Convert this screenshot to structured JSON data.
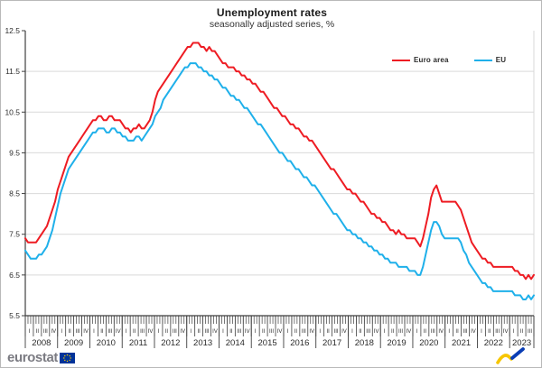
{
  "title": "Unemployment rates",
  "subtitle": "seasonally adjusted series, %",
  "footer": {
    "brand": "eurostat"
  },
  "colors": {
    "euro_area_line": "#ee1c23",
    "eu_line": "#1fb0ea",
    "grid": "#d9d9d9",
    "axis": "#3f3f3f",
    "label_text": "#2b2b2b",
    "eu_flag_blue": "#003399",
    "eu_flag_yellow": "#ffcc00",
    "icon_yellow": "#f7c600",
    "icon_blue": "#0a3db4"
  },
  "chart_data": {
    "type": "line",
    "title": "Unemployment rates",
    "subtitle": "seasonally adjusted series, %",
    "x_unit": "month",
    "x_start": "2008-01",
    "x_end": "2023-09",
    "n_months": 189,
    "years": [
      "2008",
      "2009",
      "2010",
      "2011",
      "2012",
      "2013",
      "2014",
      "2015",
      "2016",
      "2017",
      "2018",
      "2019",
      "2020",
      "2021",
      "2022",
      "2023"
    ],
    "quarter_labels": [
      "I",
      "II",
      "III",
      "IV"
    ],
    "ylim": [
      5.5,
      12.5
    ],
    "yticks": [
      5.5,
      6.5,
      7.5,
      8.5,
      9.5,
      10.5,
      11.5,
      12.5
    ],
    "grid": true,
    "legend_position": "top-right",
    "series": [
      {
        "name": "Euro area",
        "color": "#ee1c23",
        "values": [
          7.4,
          7.3,
          7.3,
          7.3,
          7.3,
          7.4,
          7.5,
          7.6,
          7.7,
          7.9,
          8.1,
          8.3,
          8.6,
          8.8,
          9.0,
          9.2,
          9.4,
          9.5,
          9.6,
          9.7,
          9.8,
          9.9,
          10.0,
          10.1,
          10.2,
          10.3,
          10.3,
          10.4,
          10.4,
          10.3,
          10.3,
          10.4,
          10.4,
          10.3,
          10.3,
          10.3,
          10.2,
          10.1,
          10.1,
          10.0,
          10.1,
          10.1,
          10.2,
          10.1,
          10.1,
          10.2,
          10.3,
          10.5,
          10.8,
          11.0,
          11.1,
          11.2,
          11.3,
          11.4,
          11.5,
          11.6,
          11.7,
          11.8,
          11.9,
          12.0,
          12.1,
          12.1,
          12.2,
          12.2,
          12.2,
          12.1,
          12.1,
          12.0,
          12.1,
          12.0,
          12.0,
          11.9,
          11.8,
          11.7,
          11.7,
          11.6,
          11.6,
          11.6,
          11.5,
          11.5,
          11.4,
          11.4,
          11.3,
          11.3,
          11.2,
          11.2,
          11.1,
          11.0,
          11.0,
          10.9,
          10.8,
          10.7,
          10.6,
          10.6,
          10.5,
          10.4,
          10.4,
          10.3,
          10.2,
          10.2,
          10.1,
          10.1,
          10.0,
          9.9,
          9.9,
          9.8,
          9.8,
          9.7,
          9.6,
          9.5,
          9.4,
          9.3,
          9.2,
          9.1,
          9.1,
          9.0,
          8.9,
          8.8,
          8.7,
          8.6,
          8.6,
          8.5,
          8.5,
          8.4,
          8.3,
          8.3,
          8.2,
          8.1,
          8.0,
          8.0,
          7.9,
          7.9,
          7.8,
          7.8,
          7.7,
          7.6,
          7.6,
          7.5,
          7.6,
          7.5,
          7.5,
          7.4,
          7.4,
          7.4,
          7.4,
          7.3,
          7.2,
          7.4,
          7.7,
          8.0,
          8.4,
          8.6,
          8.7,
          8.5,
          8.3,
          8.3,
          8.3,
          8.3,
          8.3,
          8.3,
          8.2,
          8.1,
          7.9,
          7.7,
          7.5,
          7.3,
          7.2,
          7.1,
          7.0,
          6.9,
          6.9,
          6.8,
          6.8,
          6.7,
          6.7,
          6.7,
          6.7,
          6.7,
          6.7,
          6.7,
          6.7,
          6.6,
          6.6,
          6.5,
          6.5,
          6.4,
          6.5,
          6.4,
          6.5
        ]
      },
      {
        "name": "EU",
        "color": "#1fb0ea",
        "values": [
          7.1,
          7.0,
          6.9,
          6.9,
          6.9,
          7.0,
          7.0,
          7.1,
          7.2,
          7.4,
          7.6,
          7.9,
          8.2,
          8.5,
          8.7,
          8.9,
          9.1,
          9.2,
          9.3,
          9.4,
          9.5,
          9.6,
          9.7,
          9.8,
          9.9,
          10.0,
          10.0,
          10.1,
          10.1,
          10.1,
          10.0,
          10.0,
          10.1,
          10.1,
          10.0,
          10.0,
          9.9,
          9.9,
          9.8,
          9.8,
          9.8,
          9.9,
          9.9,
          9.8,
          9.9,
          10.0,
          10.1,
          10.2,
          10.4,
          10.5,
          10.6,
          10.8,
          10.9,
          11.0,
          11.1,
          11.2,
          11.3,
          11.4,
          11.5,
          11.6,
          11.6,
          11.7,
          11.7,
          11.7,
          11.6,
          11.6,
          11.5,
          11.5,
          11.4,
          11.4,
          11.3,
          11.3,
          11.2,
          11.1,
          11.1,
          11.0,
          10.9,
          10.9,
          10.8,
          10.8,
          10.7,
          10.6,
          10.6,
          10.5,
          10.4,
          10.3,
          10.2,
          10.2,
          10.1,
          10.0,
          9.9,
          9.8,
          9.7,
          9.6,
          9.5,
          9.5,
          9.4,
          9.3,
          9.3,
          9.2,
          9.1,
          9.1,
          9.0,
          8.9,
          8.9,
          8.8,
          8.7,
          8.7,
          8.6,
          8.5,
          8.4,
          8.3,
          8.2,
          8.1,
          8.0,
          8.0,
          7.9,
          7.8,
          7.7,
          7.6,
          7.6,
          7.5,
          7.5,
          7.4,
          7.4,
          7.3,
          7.3,
          7.2,
          7.2,
          7.1,
          7.1,
          7.0,
          7.0,
          6.9,
          6.9,
          6.8,
          6.8,
          6.8,
          6.7,
          6.7,
          6.7,
          6.7,
          6.6,
          6.6,
          6.6,
          6.5,
          6.5,
          6.7,
          7.0,
          7.3,
          7.6,
          7.8,
          7.8,
          7.7,
          7.5,
          7.4,
          7.4,
          7.4,
          7.4,
          7.4,
          7.4,
          7.3,
          7.1,
          7.0,
          6.8,
          6.7,
          6.6,
          6.5,
          6.4,
          6.3,
          6.3,
          6.2,
          6.2,
          6.1,
          6.1,
          6.1,
          6.1,
          6.1,
          6.1,
          6.1,
          6.1,
          6.0,
          6.0,
          6.0,
          5.9,
          5.9,
          6.0,
          5.9,
          6.0
        ]
      }
    ]
  }
}
